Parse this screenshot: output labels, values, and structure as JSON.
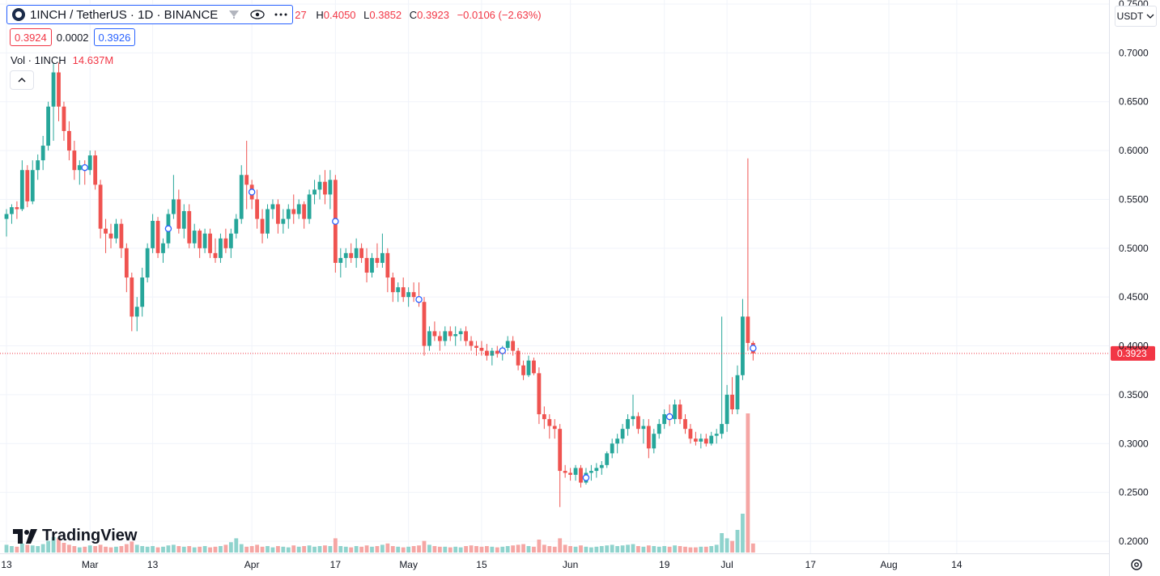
{
  "header": {
    "symbol_title": "1INCH / TetherUS · 1D · BINANCE",
    "ohlc": {
      "open_partial": "27",
      "h_label": "H",
      "high": "0.4050",
      "l_label": "L",
      "low": "0.3852",
      "c_label": "C",
      "close": "0.3923",
      "change": "−0.0106 (−2.63%)"
    },
    "bid": "0.3924",
    "spread": "0.0002",
    "ask": "0.3926",
    "volume_label": "Vol · 1INCH",
    "volume_value": "14.637M"
  },
  "currency": "USDT",
  "logo_text": "TradingView",
  "colors": {
    "up": "#26a69a",
    "down": "#ef5350",
    "up_vol": "#8fd3cd",
    "down_vol": "#f5a6a4",
    "last_price": "#f23645"
  },
  "icons": [
    "symbol-logo-icon",
    "hide-icon",
    "eye-icon",
    "more-icon",
    "chevron-up-icon",
    "chevron-down-icon",
    "gear-icon"
  ],
  "chart_data": {
    "type": "candlestick",
    "y_axis": {
      "min": 0.19,
      "max": 0.75,
      "ticks": [
        "0.7500",
        "0.7000",
        "0.6500",
        "0.6000",
        "0.5500",
        "0.5000",
        "0.4500",
        "0.4000",
        "0.3500",
        "0.3000",
        "0.2500",
        "0.2000"
      ]
    },
    "x_axis": {
      "ticks": [
        {
          "label": "13",
          "day": 0
        },
        {
          "label": "Mar",
          "day": 16
        },
        {
          "label": "13",
          "day": 28
        },
        {
          "label": "Apr",
          "day": 47
        },
        {
          "label": "17",
          "day": 63
        },
        {
          "label": "May",
          "day": 77
        },
        {
          "label": "15",
          "day": 91
        },
        {
          "label": "Jun",
          "day": 108
        },
        {
          "label": "19",
          "day": 126
        },
        {
          "label": "Jul",
          "day": 138
        },
        {
          "label": "17",
          "day": 154
        },
        {
          "label": "Aug",
          "day": 169
        },
        {
          "label": "14",
          "day": 182
        }
      ]
    },
    "last_price": "0.3923",
    "markers": [
      15,
      47,
      63,
      31,
      79,
      95,
      111,
      127,
      143
    ],
    "candles": [
      [
        0.53,
        0.54,
        0.512,
        0.535,
        12
      ],
      [
        0.535,
        0.545,
        0.525,
        0.542,
        10
      ],
      [
        0.542,
        0.548,
        0.53,
        0.54,
        9
      ],
      [
        0.54,
        0.59,
        0.538,
        0.58,
        14
      ],
      [
        0.58,
        0.585,
        0.542,
        0.548,
        12
      ],
      [
        0.548,
        0.59,
        0.545,
        0.58,
        11
      ],
      [
        0.58,
        0.596,
        0.57,
        0.59,
        10
      ],
      [
        0.59,
        0.615,
        0.58,
        0.605,
        13
      ],
      [
        0.605,
        0.65,
        0.6,
        0.645,
        18
      ],
      [
        0.645,
        0.69,
        0.61,
        0.68,
        24
      ],
      [
        0.68,
        0.69,
        0.63,
        0.645,
        22
      ],
      [
        0.645,
        0.65,
        0.61,
        0.62,
        15
      ],
      [
        0.62,
        0.63,
        0.59,
        0.6,
        12
      ],
      [
        0.6,
        0.61,
        0.57,
        0.58,
        10
      ],
      [
        0.58,
        0.59,
        0.565,
        0.585,
        8
      ],
      [
        0.585,
        0.59,
        0.565,
        0.58,
        9
      ],
      [
        0.58,
        0.6,
        0.575,
        0.595,
        11
      ],
      [
        0.595,
        0.6,
        0.56,
        0.565,
        10
      ],
      [
        0.565,
        0.57,
        0.51,
        0.52,
        12
      ],
      [
        0.52,
        0.53,
        0.495,
        0.515,
        9
      ],
      [
        0.515,
        0.525,
        0.5,
        0.51,
        8
      ],
      [
        0.51,
        0.53,
        0.505,
        0.525,
        9
      ],
      [
        0.525,
        0.53,
        0.49,
        0.5,
        10
      ],
      [
        0.5,
        0.505,
        0.455,
        0.47,
        13
      ],
      [
        0.47,
        0.475,
        0.415,
        0.43,
        17
      ],
      [
        0.43,
        0.45,
        0.415,
        0.44,
        12
      ],
      [
        0.44,
        0.48,
        0.43,
        0.47,
        10
      ],
      [
        0.47,
        0.505,
        0.465,
        0.5,
        9
      ],
      [
        0.5,
        0.535,
        0.495,
        0.528,
        10
      ],
      [
        0.528,
        0.532,
        0.49,
        0.495,
        8
      ],
      [
        0.495,
        0.51,
        0.485,
        0.505,
        9
      ],
      [
        0.505,
        0.54,
        0.5,
        0.535,
        11
      ],
      [
        0.535,
        0.575,
        0.53,
        0.55,
        12
      ],
      [
        0.55,
        0.56,
        0.515,
        0.52,
        10
      ],
      [
        0.52,
        0.545,
        0.51,
        0.538,
        9
      ],
      [
        0.538,
        0.545,
        0.5,
        0.505,
        10
      ],
      [
        0.505,
        0.525,
        0.5,
        0.518,
        8
      ],
      [
        0.518,
        0.52,
        0.49,
        0.5,
        9
      ],
      [
        0.5,
        0.52,
        0.495,
        0.515,
        10
      ],
      [
        0.515,
        0.52,
        0.49,
        0.495,
        8
      ],
      [
        0.495,
        0.51,
        0.485,
        0.49,
        9
      ],
      [
        0.49,
        0.515,
        0.485,
        0.51,
        10
      ],
      [
        0.51,
        0.52,
        0.495,
        0.5,
        12
      ],
      [
        0.5,
        0.52,
        0.49,
        0.515,
        16
      ],
      [
        0.515,
        0.535,
        0.51,
        0.53,
        22
      ],
      [
        0.53,
        0.585,
        0.525,
        0.575,
        13
      ],
      [
        0.575,
        0.61,
        0.54,
        0.565,
        9
      ],
      [
        0.565,
        0.57,
        0.54,
        0.55,
        10
      ],
      [
        0.55,
        0.56,
        0.52,
        0.53,
        12
      ],
      [
        0.53,
        0.54,
        0.505,
        0.515,
        9
      ],
      [
        0.515,
        0.545,
        0.51,
        0.54,
        10
      ],
      [
        0.54,
        0.55,
        0.53,
        0.545,
        8
      ],
      [
        0.545,
        0.55,
        0.515,
        0.525,
        10
      ],
      [
        0.525,
        0.54,
        0.515,
        0.53,
        9
      ],
      [
        0.53,
        0.545,
        0.52,
        0.54,
        8
      ],
      [
        0.54,
        0.555,
        0.525,
        0.535,
        11
      ],
      [
        0.535,
        0.55,
        0.53,
        0.545,
        9
      ],
      [
        0.545,
        0.548,
        0.52,
        0.53,
        10
      ],
      [
        0.53,
        0.56,
        0.525,
        0.555,
        11
      ],
      [
        0.555,
        0.57,
        0.545,
        0.56,
        9
      ],
      [
        0.56,
        0.575,
        0.55,
        0.568,
        10
      ],
      [
        0.568,
        0.58,
        0.545,
        0.555,
        11
      ],
      [
        0.555,
        0.58,
        0.54,
        0.57,
        10
      ],
      [
        0.57,
        0.575,
        0.475,
        0.485,
        22
      ],
      [
        0.485,
        0.5,
        0.47,
        0.49,
        10
      ],
      [
        0.49,
        0.5,
        0.48,
        0.495,
        9
      ],
      [
        0.495,
        0.505,
        0.485,
        0.49,
        8
      ],
      [
        0.49,
        0.51,
        0.48,
        0.5,
        10
      ],
      [
        0.5,
        0.505,
        0.485,
        0.49,
        9
      ],
      [
        0.49,
        0.5,
        0.465,
        0.475,
        11
      ],
      [
        0.475,
        0.495,
        0.47,
        0.49,
        9
      ],
      [
        0.49,
        0.505,
        0.48,
        0.485,
        10
      ],
      [
        0.485,
        0.515,
        0.48,
        0.495,
        12
      ],
      [
        0.495,
        0.5,
        0.455,
        0.47,
        14
      ],
      [
        0.47,
        0.475,
        0.445,
        0.455,
        10
      ],
      [
        0.455,
        0.465,
        0.445,
        0.46,
        9
      ],
      [
        0.46,
        0.47,
        0.445,
        0.45,
        8
      ],
      [
        0.45,
        0.46,
        0.44,
        0.455,
        9
      ],
      [
        0.455,
        0.465,
        0.445,
        0.45,
        10
      ],
      [
        0.45,
        0.465,
        0.44,
        0.445,
        11
      ],
      [
        0.445,
        0.45,
        0.39,
        0.4,
        18
      ],
      [
        0.4,
        0.42,
        0.395,
        0.415,
        12
      ],
      [
        0.415,
        0.425,
        0.405,
        0.41,
        10
      ],
      [
        0.41,
        0.415,
        0.395,
        0.405,
        9
      ],
      [
        0.405,
        0.42,
        0.4,
        0.415,
        9
      ],
      [
        0.415,
        0.42,
        0.405,
        0.41,
        8
      ],
      [
        0.41,
        0.42,
        0.4,
        0.412,
        9
      ],
      [
        0.412,
        0.418,
        0.405,
        0.415,
        8
      ],
      [
        0.415,
        0.42,
        0.4,
        0.405,
        10
      ],
      [
        0.405,
        0.41,
        0.395,
        0.4,
        11
      ],
      [
        0.4,
        0.405,
        0.39,
        0.398,
        10
      ],
      [
        0.398,
        0.405,
        0.39,
        0.395,
        9
      ],
      [
        0.395,
        0.402,
        0.385,
        0.39,
        10
      ],
      [
        0.39,
        0.398,
        0.38,
        0.395,
        9
      ],
      [
        0.395,
        0.4,
        0.388,
        0.392,
        8
      ],
      [
        0.392,
        0.4,
        0.385,
        0.398,
        9
      ],
      [
        0.398,
        0.41,
        0.395,
        0.405,
        10
      ],
      [
        0.405,
        0.41,
        0.39,
        0.395,
        11
      ],
      [
        0.395,
        0.398,
        0.375,
        0.38,
        12
      ],
      [
        0.38,
        0.385,
        0.365,
        0.37,
        13
      ],
      [
        0.37,
        0.39,
        0.368,
        0.385,
        10
      ],
      [
        0.385,
        0.388,
        0.37,
        0.372,
        9
      ],
      [
        0.372,
        0.378,
        0.32,
        0.33,
        20
      ],
      [
        0.33,
        0.338,
        0.315,
        0.325,
        12
      ],
      [
        0.325,
        0.33,
        0.305,
        0.318,
        10
      ],
      [
        0.318,
        0.325,
        0.305,
        0.315,
        9
      ],
      [
        0.315,
        0.32,
        0.235,
        0.272,
        22
      ],
      [
        0.272,
        0.278,
        0.265,
        0.27,
        12
      ],
      [
        0.27,
        0.275,
        0.262,
        0.268,
        10
      ],
      [
        0.268,
        0.278,
        0.262,
        0.275,
        9
      ],
      [
        0.275,
        0.278,
        0.255,
        0.26,
        11
      ],
      [
        0.26,
        0.275,
        0.258,
        0.27,
        9
      ],
      [
        0.27,
        0.278,
        0.262,
        0.272,
        8
      ],
      [
        0.272,
        0.28,
        0.265,
        0.275,
        9
      ],
      [
        0.275,
        0.282,
        0.268,
        0.278,
        10
      ],
      [
        0.278,
        0.292,
        0.275,
        0.29,
        11
      ],
      [
        0.29,
        0.305,
        0.285,
        0.3,
        12
      ],
      [
        0.3,
        0.31,
        0.29,
        0.305,
        10
      ],
      [
        0.305,
        0.32,
        0.3,
        0.315,
        11
      ],
      [
        0.315,
        0.33,
        0.308,
        0.325,
        12
      ],
      [
        0.325,
        0.35,
        0.318,
        0.328,
        13
      ],
      [
        0.328,
        0.332,
        0.31,
        0.315,
        10
      ],
      [
        0.315,
        0.325,
        0.3,
        0.318,
        9
      ],
      [
        0.318,
        0.325,
        0.285,
        0.295,
        11
      ],
      [
        0.295,
        0.315,
        0.29,
        0.31,
        10
      ],
      [
        0.31,
        0.325,
        0.305,
        0.32,
        9
      ],
      [
        0.32,
        0.335,
        0.315,
        0.33,
        10
      ],
      [
        0.33,
        0.34,
        0.318,
        0.325,
        9
      ],
      [
        0.325,
        0.345,
        0.32,
        0.34,
        11
      ],
      [
        0.34,
        0.345,
        0.32,
        0.325,
        10
      ],
      [
        0.325,
        0.33,
        0.31,
        0.315,
        9
      ],
      [
        0.315,
        0.32,
        0.3,
        0.305,
        8
      ],
      [
        0.305,
        0.312,
        0.298,
        0.302,
        8
      ],
      [
        0.302,
        0.31,
        0.295,
        0.305,
        9
      ],
      [
        0.305,
        0.31,
        0.297,
        0.3,
        9
      ],
      [
        0.3,
        0.312,
        0.298,
        0.308,
        10
      ],
      [
        0.308,
        0.315,
        0.3,
        0.31,
        12
      ],
      [
        0.31,
        0.43,
        0.305,
        0.32,
        30
      ],
      [
        0.32,
        0.36,
        0.312,
        0.35,
        22
      ],
      [
        0.35,
        0.368,
        0.33,
        0.335,
        18
      ],
      [
        0.335,
        0.38,
        0.33,
        0.37,
        35
      ],
      [
        0.37,
        0.448,
        0.365,
        0.43,
        60
      ],
      [
        0.43,
        0.592,
        0.395,
        0.403,
        215
      ],
      [
        0.403,
        0.405,
        0.385,
        0.3923,
        14
      ]
    ]
  }
}
